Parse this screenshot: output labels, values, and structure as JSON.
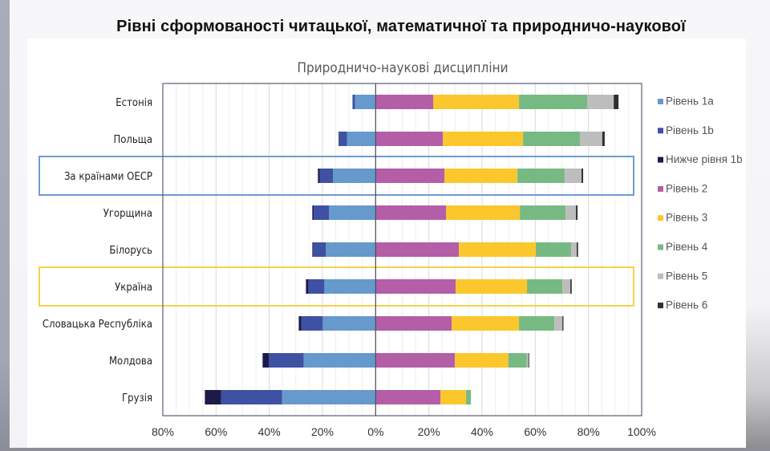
{
  "slide": {
    "title": "Рівні сформованості читацької, математичної та природничо-наукової"
  },
  "chart_data": {
    "type": "bar",
    "orientation": "horizontal",
    "stacked": "diverging",
    "title": "Природничо-наукові дисципліни",
    "xlabel": "",
    "ylabel": "",
    "xlim": [
      -80,
      100
    ],
    "x_ticks": [
      -80,
      -60,
      -40,
      -20,
      0,
      20,
      40,
      60,
      80,
      100
    ],
    "x_tick_labels": [
      "80%",
      "60%",
      "40%",
      "20%",
      "0%",
      "20%",
      "40%",
      "60%",
      "80%",
      "100%"
    ],
    "grid": true,
    "legend_position": "right",
    "categories": [
      "Естонія",
      "Польща",
      "За країнами ОЕСР",
      "Угорщина",
      "Білорусь",
      "Україна",
      "Словацька Республіка",
      "Молдова",
      "Грузія"
    ],
    "highlighted": [
      {
        "category": "За країнами ОЕСР",
        "color": "#6f9bd1"
      },
      {
        "category": "Україна",
        "color": "#f5d34a"
      }
    ],
    "series": [
      {
        "name": "Рівень 1a",
        "side": "negative",
        "color": "#6699cc",
        "values": [
          7.8,
          10.8,
          16.0,
          17.5,
          18.7,
          19.3,
          19.9,
          27.1,
          35.2
        ]
      },
      {
        "name": "Рівень 1b",
        "side": "negative",
        "color": "#3f51a3",
        "values": [
          0.9,
          3.0,
          5.0,
          5.8,
          4.8,
          6.0,
          8.0,
          13.0,
          22.9
        ]
      },
      {
        "name": "Нижче рівня 1b",
        "side": "negative",
        "color": "#1c1a4a",
        "values": [
          0.0,
          0.1,
          0.7,
          0.5,
          0.3,
          0.9,
          1.0,
          2.4,
          6.1
        ]
      },
      {
        "name": "Рівень 2",
        "side": "positive",
        "color": "#b35ea6",
        "values": [
          21.7,
          25.3,
          25.9,
          26.5,
          31.3,
          30.1,
          28.6,
          29.8,
          24.4
        ]
      },
      {
        "name": "Рівень 3",
        "side": "positive",
        "color": "#fcc72c",
        "values": [
          32.2,
          30.1,
          27.4,
          27.7,
          28.9,
          26.8,
          25.3,
          20.1,
          9.6
        ]
      },
      {
        "name": "Рівень 4",
        "side": "positive",
        "color": "#77b982",
        "values": [
          25.6,
          21.4,
          17.8,
          17.2,
          13.3,
          13.3,
          13.3,
          6.9,
          1.8
        ]
      },
      {
        "name": "Рівень 5",
        "side": "positive",
        "color": "#bdbdbd",
        "values": [
          10.0,
          8.4,
          6.3,
          3.9,
          2.1,
          3.0,
          3.0,
          0.6,
          0.0
        ]
      },
      {
        "name": "Рівень 6",
        "side": "positive",
        "color": "#2e2e2e",
        "values": [
          1.8,
          0.9,
          0.6,
          0.6,
          0.5,
          0.5,
          0.4,
          0.3,
          0.0
        ]
      }
    ],
    "legend_order": [
      "Рівень 1a",
      "Рівень 1b",
      "Нижче рівня 1b",
      "Рівень 2",
      "Рівень 3",
      "Рівень 4",
      "Рівень 5",
      "Рівень 6"
    ]
  }
}
